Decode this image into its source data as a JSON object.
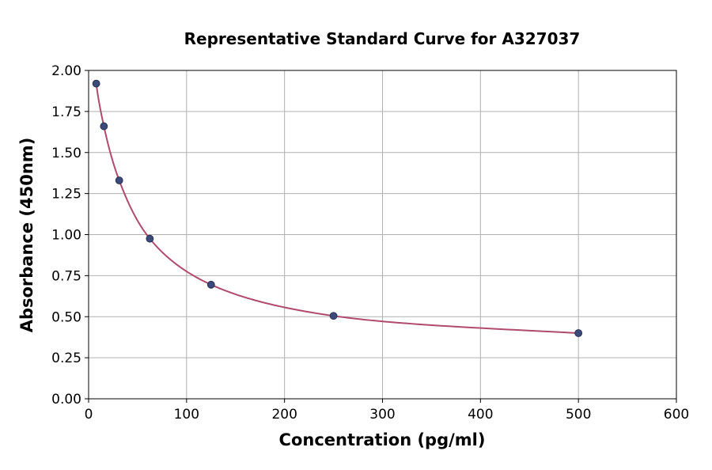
{
  "chart_data": {
    "type": "scatter",
    "title": "Representative Standard Curve for A327037",
    "xlabel": "Concentration (pg/ml)",
    "ylabel": "Absorbance (450nm)",
    "xlim": [
      0,
      600
    ],
    "ylim": [
      0,
      2.0
    ],
    "x_ticks": [
      "0",
      "100",
      "200",
      "300",
      "400",
      "500",
      "600"
    ],
    "y_ticks": [
      "0.00",
      "0.25",
      "0.50",
      "0.75",
      "1.00",
      "1.25",
      "1.50",
      "1.75",
      "2.00"
    ],
    "grid": true,
    "series": [
      {
        "points": [
          {
            "x": 7.8,
            "y": 1.92
          },
          {
            "x": 15.6,
            "y": 1.66
          },
          {
            "x": 31.25,
            "y": 1.33
          },
          {
            "x": 62.5,
            "y": 0.975
          },
          {
            "x": 125,
            "y": 0.695
          },
          {
            "x": 250,
            "y": 0.505
          },
          {
            "x": 500,
            "y": 0.4
          }
        ],
        "marker_color": "#3b4a7a",
        "line_color": "#b04a6e",
        "fit": "smooth curve"
      }
    ]
  }
}
